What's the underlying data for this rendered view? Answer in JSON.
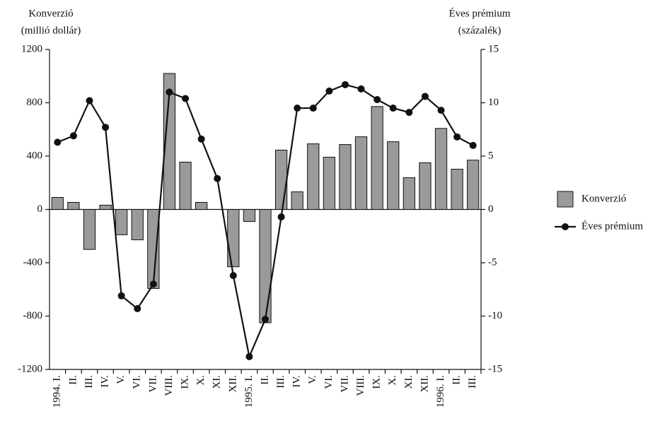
{
  "chart_data": {
    "type": "bar",
    "y_label": [
      "Konverzió",
      "(millió dollár)"
    ],
    "y2_label": [
      "Éves prémium",
      "(százalék)"
    ],
    "categories": [
      "1994. I.",
      "II.",
      "III.",
      "IV.",
      "V.",
      "VI.",
      "VII.",
      "VIII.",
      "IX.",
      "X.",
      "XI.",
      "XII.",
      "1995. I.",
      "II.",
      "III.",
      "IV.",
      "V.",
      "VI.",
      "VII.",
      "VIII.",
      "IX.",
      "X.",
      "XI.",
      "XII.",
      "1996. I.",
      "II.",
      "III."
    ],
    "series": [
      {
        "name": "Konverzió",
        "type": "bar",
        "color": "#9a9a9a",
        "values": [
          90,
          53,
          -300,
          32,
          -190,
          -228,
          -593,
          1020,
          355,
          53,
          0,
          -430,
          -90,
          -850,
          445,
          132,
          492,
          392,
          487,
          545,
          772,
          508,
          238,
          350,
          608,
          302,
          370
        ]
      },
      {
        "name": "Éves prémium",
        "type": "line",
        "axis": "y2",
        "color": "#111111",
        "values": [
          6.3,
          6.9,
          10.2,
          7.7,
          -8.1,
          -9.3,
          -7.0,
          11.0,
          10.4,
          6.6,
          2.9,
          -6.2,
          -13.8,
          -10.3,
          -0.7,
          9.5,
          9.5,
          11.1,
          11.7,
          11.3,
          10.3,
          9.5,
          9.1,
          10.6,
          9.3,
          6.8,
          6.0
        ]
      }
    ],
    "ylim": [
      -1200,
      1200
    ],
    "yticks": [
      -1200,
      -800,
      -400,
      0,
      400,
      800,
      1200
    ],
    "y2lim": [
      -15,
      15
    ],
    "y2ticks": [
      -15,
      -10,
      -5,
      0,
      5,
      10,
      15
    ],
    "legend": "right"
  }
}
